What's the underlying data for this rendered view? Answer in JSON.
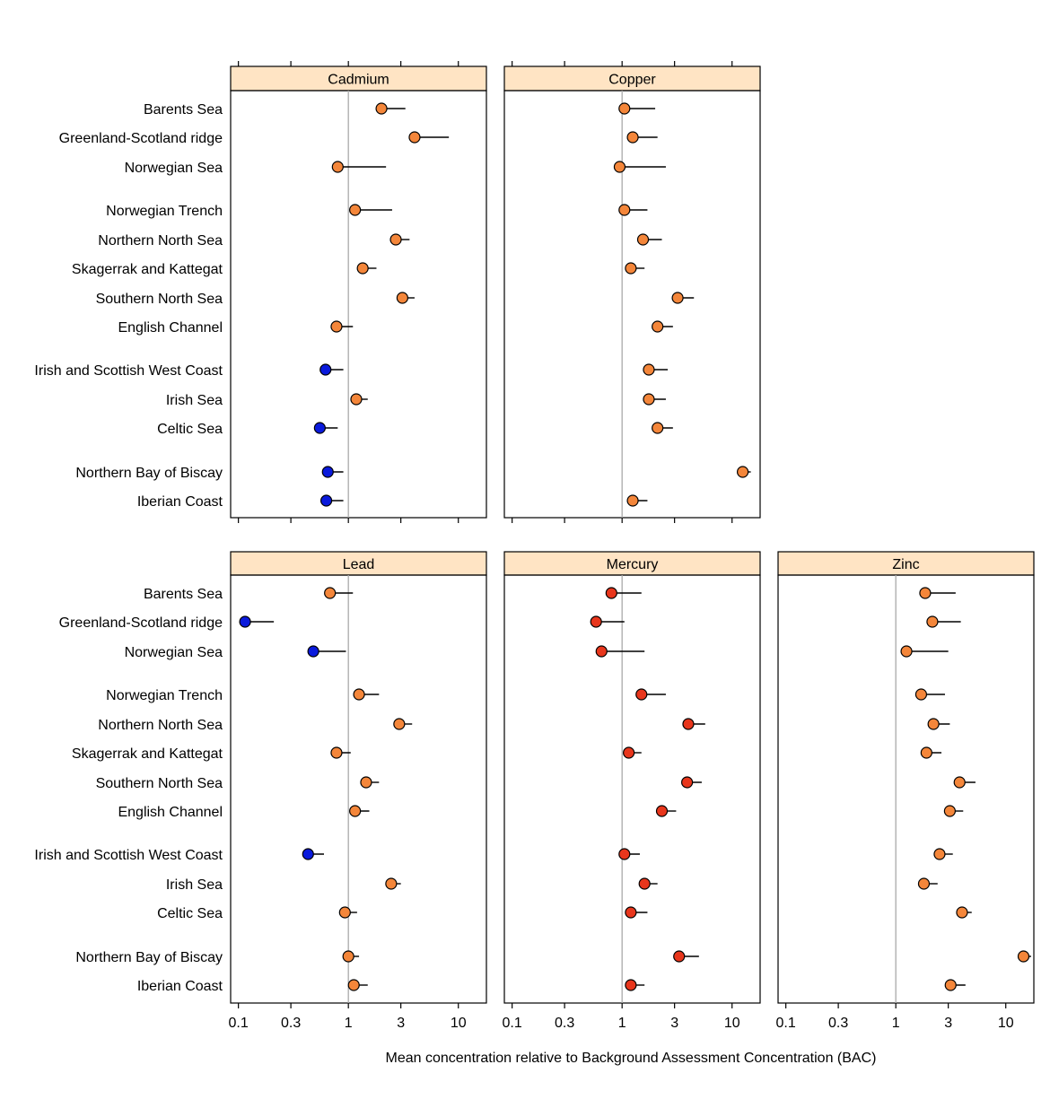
{
  "chart_data": {
    "type": "scatter",
    "xlabel": "Mean concentration relative to Background Assessment Concentration (BAC)",
    "ylabel": "",
    "x_scale": "log",
    "xlim": [
      0.085,
      18
    ],
    "x_ticks": [
      {
        "value": 0.1,
        "label": "0.1"
      },
      {
        "value": 0.3,
        "label": "0.3"
      },
      {
        "value": 1,
        "label": "1"
      },
      {
        "value": 3,
        "label": "3"
      },
      {
        "value": 10,
        "label": "10"
      }
    ],
    "reference_value": 1,
    "reference_line_color": "#aaaaaa",
    "strip_color": "#ffe4c4",
    "status_colors": {
      "blue": "#0a1adc",
      "orange": "#f4863a",
      "red": "#e8361c"
    },
    "regions": [
      "Barents Sea",
      "Greenland-Scotland ridge",
      "Norwegian Sea",
      "Norwegian Trench",
      "Northern North Sea",
      "Skagerrak and Kattegat",
      "Southern North Sea",
      "English Channel",
      "Irish and Scottish West Coast",
      "Irish Sea",
      "Celtic Sea",
      "Northern Bay of Biscay",
      "Iberian Coast"
    ],
    "panels": [
      {
        "name": "Cadmium",
        "mean": [
          2.0,
          4.0,
          0.8,
          1.15,
          2.7,
          1.35,
          3.1,
          0.78,
          0.62,
          1.18,
          0.55,
          0.65,
          0.63
        ],
        "upper": [
          3.3,
          8.2,
          2.2,
          2.5,
          3.6,
          1.8,
          4.0,
          1.1,
          0.9,
          1.5,
          0.8,
          0.9,
          0.9
        ],
        "status": [
          "orange",
          "orange",
          "orange",
          "orange",
          "orange",
          "orange",
          "orange",
          "orange",
          "blue",
          "orange",
          "blue",
          "blue",
          "blue"
        ]
      },
      {
        "name": "Copper",
        "mean": [
          1.05,
          1.25,
          0.95,
          1.05,
          1.55,
          1.2,
          3.2,
          2.1,
          1.75,
          1.75,
          2.1,
          12.5,
          1.25
        ],
        "upper": [
          2.0,
          2.1,
          2.5,
          1.7,
          2.3,
          1.6,
          4.5,
          2.9,
          2.6,
          2.5,
          2.9,
          14.8,
          1.7
        ],
        "status": [
          "orange",
          "orange",
          "orange",
          "orange",
          "orange",
          "orange",
          "orange",
          "orange",
          "orange",
          "orange",
          "orange",
          "orange",
          "orange"
        ]
      },
      {
        "name": "Lead",
        "mean": [
          0.68,
          0.115,
          0.48,
          1.25,
          2.9,
          0.78,
          1.45,
          1.15,
          0.43,
          2.45,
          0.93,
          1.0,
          1.12
        ],
        "upper": [
          1.1,
          0.21,
          0.95,
          1.9,
          3.8,
          1.05,
          1.9,
          1.55,
          0.6,
          3.0,
          1.2,
          1.25,
          1.5
        ],
        "status": [
          "orange",
          "blue",
          "blue",
          "orange",
          "orange",
          "orange",
          "orange",
          "orange",
          "blue",
          "orange",
          "orange",
          "orange",
          "orange"
        ]
      },
      {
        "name": "Mercury",
        "mean": [
          0.8,
          0.58,
          0.65,
          1.5,
          4.0,
          1.15,
          3.9,
          2.3,
          1.05,
          1.6,
          1.2,
          3.3,
          1.2
        ],
        "upper": [
          1.5,
          1.05,
          1.6,
          2.5,
          5.7,
          1.5,
          5.3,
          3.1,
          1.45,
          2.1,
          1.7,
          5.0,
          1.6
        ],
        "status": [
          "red",
          "red",
          "red",
          "red",
          "red",
          "red",
          "red",
          "red",
          "red",
          "red",
          "red",
          "red",
          "red"
        ]
      },
      {
        "name": "Zinc",
        "mean": [
          1.85,
          2.15,
          1.25,
          1.7,
          2.2,
          1.9,
          3.8,
          3.1,
          2.5,
          1.8,
          4.0,
          14.5,
          3.15
        ],
        "upper": [
          3.5,
          3.9,
          3.0,
          2.8,
          3.1,
          2.6,
          5.3,
          4.1,
          3.3,
          2.4,
          4.9,
          17.0,
          4.3
        ],
        "status": [
          "orange",
          "orange",
          "orange",
          "orange",
          "orange",
          "orange",
          "orange",
          "orange",
          "orange",
          "orange",
          "orange",
          "orange",
          "orange"
        ]
      }
    ]
  }
}
